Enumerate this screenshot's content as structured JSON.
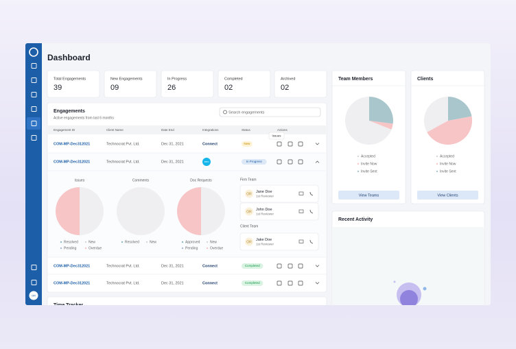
{
  "header": {
    "title": "Dashboard"
  },
  "sidebar": {
    "avatar": "OR"
  },
  "stats": [
    {
      "label": "Total Engagements",
      "value": "39"
    },
    {
      "label": "New Engagements",
      "value": "09"
    },
    {
      "label": "In Progress",
      "value": "26"
    },
    {
      "label": "Completed",
      "value": "02"
    },
    {
      "label": "Archived",
      "value": "02"
    }
  ],
  "engagements": {
    "title": "Engagements",
    "subtitle": "Active engagements from last 6 months",
    "search_placeholder": "Search engagements",
    "columns": [
      "Engagement ID",
      "Client Name",
      "Date End",
      "Integrations",
      "Status",
      "Actions"
    ],
    "tooltip": "Issues",
    "rows": [
      {
        "id": "COM-MP-Dec312021",
        "client": "Technocrat Pvt. Ltd.",
        "date": "Dec 31, 2021",
        "integration": "Connect",
        "status": "New",
        "status_color": "#c98a00",
        "status_bg": "#fff3d6"
      },
      {
        "id": "COM-MP-Dec312021",
        "client": "Technocrat Pvt. Ltd.",
        "date": "Dec 31, 2021",
        "integration": "xero",
        "status": "In Progress",
        "status_color": "#1d5ea8",
        "status_bg": "#dde8f7"
      },
      {
        "id": "COM-MP-Dec312021",
        "client": "Technocrat Pvt. Ltd.",
        "date": "Dec 31, 2021",
        "integration": "Connect",
        "status": "Completed",
        "status_color": "#1a9a4b",
        "status_bg": "#daf3e3"
      },
      {
        "id": "COM-MP-Dec312021",
        "client": "Technocrat Pvt. Ltd.",
        "date": "Dec 31, 2021",
        "integration": "Connect",
        "status": "Completed",
        "status_color": "#1a9a4b",
        "status_bg": "#daf3e3"
      }
    ],
    "expanded": {
      "firm_team_title": "Firm Team",
      "firm_team": [
        {
          "initials": "OR",
          "name": "Jane Doe",
          "role": "1st Reviewer"
        },
        {
          "initials": "OR",
          "name": "John Doe",
          "role": "1st Reviewer"
        }
      ],
      "client_team_title": "Client Team",
      "client_team": [
        {
          "initials": "OR",
          "name": "Jake Doe",
          "role": "1st Reviewer"
        }
      ]
    }
  },
  "time_tracker": {
    "title": "Time Tracker"
  },
  "team_members": {
    "button": "View Teams"
  },
  "clients": {
    "button": "View Clients"
  },
  "recent_activity": {
    "title": "Recent Activity"
  },
  "chart_data": [
    {
      "type": "pie",
      "title": "Issues",
      "categories": [
        "Resolved",
        "New",
        "Pending",
        "Overdue"
      ],
      "values": [
        0,
        50,
        0,
        50
      ],
      "colors": [
        "#8fb8c0",
        "#efeff1",
        "#a9b8d6",
        "#f8c5c6"
      ],
      "counterclock": false
    },
    {
      "type": "pie",
      "title": "Comments",
      "categories": [
        "Resolved",
        "New"
      ],
      "values": [
        0,
        100
      ],
      "colors": [
        "#8fb8c0",
        "#efeff1"
      ],
      "counterclock": false
    },
    {
      "type": "pie",
      "title": "Doc Requests",
      "categories": [
        "Approved",
        "New",
        "Pending",
        "Overdue"
      ],
      "values": [
        0,
        50,
        0,
        50
      ],
      "colors": [
        "#8fb8c0",
        "#efeff1",
        "#a9b8d6",
        "#f8c5c6"
      ],
      "counterclock": false
    },
    {
      "type": "pie",
      "title": "Team Members",
      "categories": [
        "Accepted",
        "Invite Now",
        "Invite Sent"
      ],
      "values": [
        69,
        4,
        27
      ],
      "colors": [
        "#efeff1",
        "#f8c5c6",
        "#a8c6cc"
      ],
      "counterclock": true
    },
    {
      "type": "pie",
      "title": "Clients",
      "categories": [
        "Accepted",
        "Invite Now",
        "Invite Sent"
      ],
      "values": [
        33,
        45,
        22
      ],
      "colors": [
        "#efeff1",
        "#f8c5c6",
        "#a8c6cc"
      ],
      "counterclock": true
    }
  ]
}
